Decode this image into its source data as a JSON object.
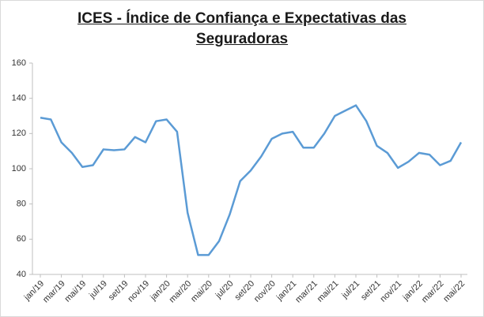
{
  "chart_data": {
    "type": "line",
    "title": "ICES - Índice de Confiança e Expectativas das Seguradoras",
    "categories": [
      "jan/19",
      null,
      "mar/19",
      null,
      "mai/19",
      null,
      "jul/19",
      null,
      "set/19",
      null,
      "nov/19",
      null,
      "jan/20",
      null,
      "mar/20",
      null,
      "mai/20",
      null,
      "jul/20",
      null,
      "set/20",
      null,
      "nov/20",
      null,
      "jan/21",
      null,
      "mar/21",
      null,
      "mai/21",
      null,
      "jul/21",
      null,
      "set/21",
      null,
      "nov/21",
      null,
      "jan/22",
      null,
      "mar/22",
      null,
      "mai/22"
    ],
    "series": [
      {
        "name": "ICES",
        "color": "#5b9bd5",
        "values": [
          129,
          128,
          115,
          109,
          101,
          102,
          111,
          110.5,
          111,
          118,
          115,
          127,
          128,
          121,
          75,
          51,
          51,
          59,
          74,
          93,
          99,
          107,
          117,
          120,
          121,
          112,
          112,
          120,
          130,
          133,
          136,
          127,
          113,
          109,
          100.5,
          104,
          109,
          108,
          102,
          104.5,
          115
        ]
      }
    ],
    "ylim": [
      40,
      160
    ],
    "yticks": [
      40,
      60,
      80,
      100,
      120,
      140,
      160
    ],
    "grid": false
  }
}
